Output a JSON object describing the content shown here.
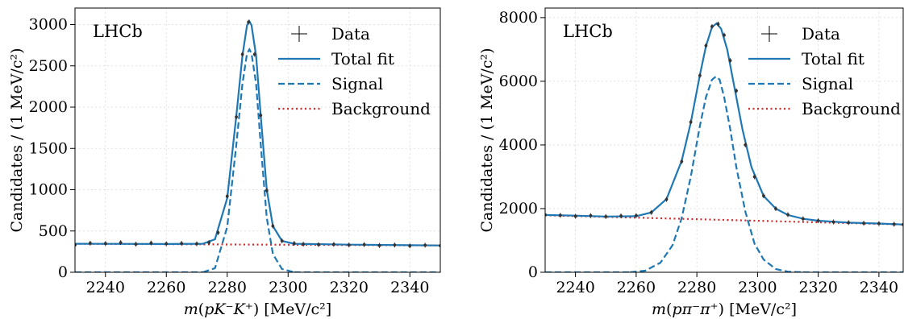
{
  "chart_data": [
    {
      "type": "line",
      "experiment_label": "LHCb",
      "ylabel": "Candidates / (1 MeV/c²)",
      "xlabel_parts": [
        [
          "m",
          "it"
        ],
        [
          "(",
          ""
        ],
        [
          "pK",
          "it"
        ],
        [
          "⁻",
          ""
        ],
        [
          "K",
          "it"
        ],
        [
          "⁺",
          ""
        ],
        [
          ") [MeV/c",
          ""
        ],
        [
          "²",
          ""
        ],
        [
          "]",
          ""
        ]
      ],
      "xlim": [
        2230,
        2350
      ],
      "ylim": [
        0,
        3200
      ],
      "xticks": [
        2240,
        2260,
        2280,
        2300,
        2320,
        2340
      ],
      "yticks": [
        0,
        500,
        1000,
        1500,
        2000,
        2500,
        3000
      ],
      "grid": true,
      "legend": {
        "position": "top-right",
        "entries": [
          {
            "label": "Data",
            "style": "errorbar"
          },
          {
            "label": "Total fit",
            "style": "solid"
          },
          {
            "label": "Signal",
            "style": "dashed"
          },
          {
            "label": "Background",
            "style": "dotted"
          }
        ]
      },
      "series": [
        {
          "name": "Total fit",
          "x": [
            2230,
            2260,
            2272,
            2276,
            2280,
            2283,
            2285,
            2286.5,
            2287.3,
            2288,
            2289.5,
            2291,
            2293,
            2295,
            2298,
            2302,
            2320,
            2350
          ],
          "values": [
            345,
            342,
            345,
            400,
            900,
            1900,
            2620,
            2990,
            3040,
            2990,
            2620,
            1900,
            1000,
            560,
            380,
            345,
            335,
            325
          ]
        },
        {
          "name": "Signal",
          "x": [
            2272,
            2276,
            2280,
            2283,
            2285,
            2286.5,
            2287.3,
            2288,
            2289.5,
            2291,
            2293,
            2295,
            2298,
            2302
          ],
          "values": [
            0,
            50,
            550,
            1550,
            2280,
            2650,
            2700,
            2650,
            2280,
            1550,
            660,
            220,
            40,
            0
          ]
        },
        {
          "name": "Background",
          "x": [
            2230,
            2350
          ],
          "values": [
            345,
            325
          ]
        },
        {
          "name": "Data",
          "x": [
            2230,
            2235,
            2240,
            2245,
            2250,
            2255,
            2260,
            2265,
            2270,
            2274,
            2277,
            2280,
            2283,
            2285,
            2287,
            2289,
            2291,
            2293,
            2295,
            2298,
            2302,
            2305,
            2310,
            2315,
            2320,
            2325,
            2330,
            2335,
            2340,
            2345,
            2350
          ],
          "values": [
            330,
            352,
            348,
            360,
            340,
            355,
            345,
            350,
            345,
            360,
            480,
            920,
            1880,
            2640,
            3030,
            2640,
            1900,
            990,
            560,
            380,
            350,
            340,
            335,
            338,
            330,
            335,
            325,
            330,
            320,
            328,
            322
          ]
        }
      ],
      "colors": {
        "fit": "#1f77b4",
        "signal": "#1f77b4",
        "background": "#d62728",
        "data": "#333333"
      }
    },
    {
      "type": "line",
      "experiment_label": "LHCb",
      "ylabel": "Candidates / (1 MeV/c²)",
      "xlabel_parts": [
        [
          "m",
          "it"
        ],
        [
          "(",
          ""
        ],
        [
          "pπ",
          "it"
        ],
        [
          "⁻",
          ""
        ],
        [
          "π",
          "it"
        ],
        [
          "⁺",
          ""
        ],
        [
          ") [MeV/c",
          ""
        ],
        [
          "²",
          ""
        ],
        [
          "]",
          ""
        ]
      ],
      "xlim": [
        2230,
        2348
      ],
      "ylim": [
        0,
        8300
      ],
      "xticks": [
        2240,
        2260,
        2280,
        2300,
        2320,
        2340
      ],
      "yticks": [
        0,
        2000,
        4000,
        6000,
        8000
      ],
      "grid": true,
      "legend": {
        "position": "top-right",
        "entries": [
          {
            "label": "Data",
            "style": "errorbar"
          },
          {
            "label": "Total fit",
            "style": "solid"
          },
          {
            "label": "Signal",
            "style": "dashed"
          },
          {
            "label": "Background",
            "style": "dotted"
          }
        ]
      },
      "series": [
        {
          "name": "Total fit",
          "x": [
            2230,
            2240,
            2250,
            2260,
            2265,
            2270,
            2275,
            2278,
            2281,
            2283,
            2285,
            2286.5,
            2288,
            2290,
            2292,
            2295,
            2298,
            2302,
            2306,
            2310,
            2315,
            2320,
            2330,
            2340,
            2348
          ],
          "values": [
            1800,
            1780,
            1750,
            1760,
            1880,
            2300,
            3500,
            4700,
            6200,
            7100,
            7700,
            7820,
            7650,
            7000,
            6000,
            4500,
            3300,
            2400,
            2000,
            1800,
            1680,
            1620,
            1560,
            1530,
            1500
          ]
        },
        {
          "name": "Signal",
          "x": [
            2258,
            2263,
            2268,
            2272,
            2275,
            2278,
            2281,
            2283,
            2285,
            2286.3,
            2287.5,
            2289,
            2291,
            2293,
            2296,
            2299,
            2302,
            2306,
            2310,
            2315
          ],
          "values": [
            0,
            50,
            300,
            850,
            1700,
            3000,
            4600,
            5500,
            6050,
            6150,
            6050,
            5500,
            4500,
            3300,
            1900,
            900,
            400,
            100,
            20,
            0
          ]
        },
        {
          "name": "Background",
          "x": [
            2230,
            2348
          ],
          "values": [
            1790,
            1500
          ]
        },
        {
          "name": "Data",
          "x": [
            2230,
            2235,
            2240,
            2245,
            2250,
            2255,
            2260,
            2265,
            2270,
            2275,
            2278,
            2281,
            2283,
            2285,
            2287,
            2289,
            2291,
            2293,
            2296,
            2299,
            2302,
            2306,
            2310,
            2315,
            2320,
            2325,
            2330,
            2335,
            2340,
            2345,
            2348
          ],
          "values": [
            1810,
            1790,
            1760,
            1780,
            1750,
            1770,
            1780,
            1880,
            2290,
            3480,
            4720,
            6180,
            7120,
            7720,
            7800,
            7450,
            6650,
            5700,
            4000,
            3000,
            2400,
            2000,
            1810,
            1680,
            1620,
            1580,
            1560,
            1540,
            1530,
            1510,
            1500
          ]
        }
      ],
      "colors": {
        "fit": "#1f77b4",
        "signal": "#1f77b4",
        "background": "#d62728",
        "data": "#333333"
      }
    }
  ]
}
